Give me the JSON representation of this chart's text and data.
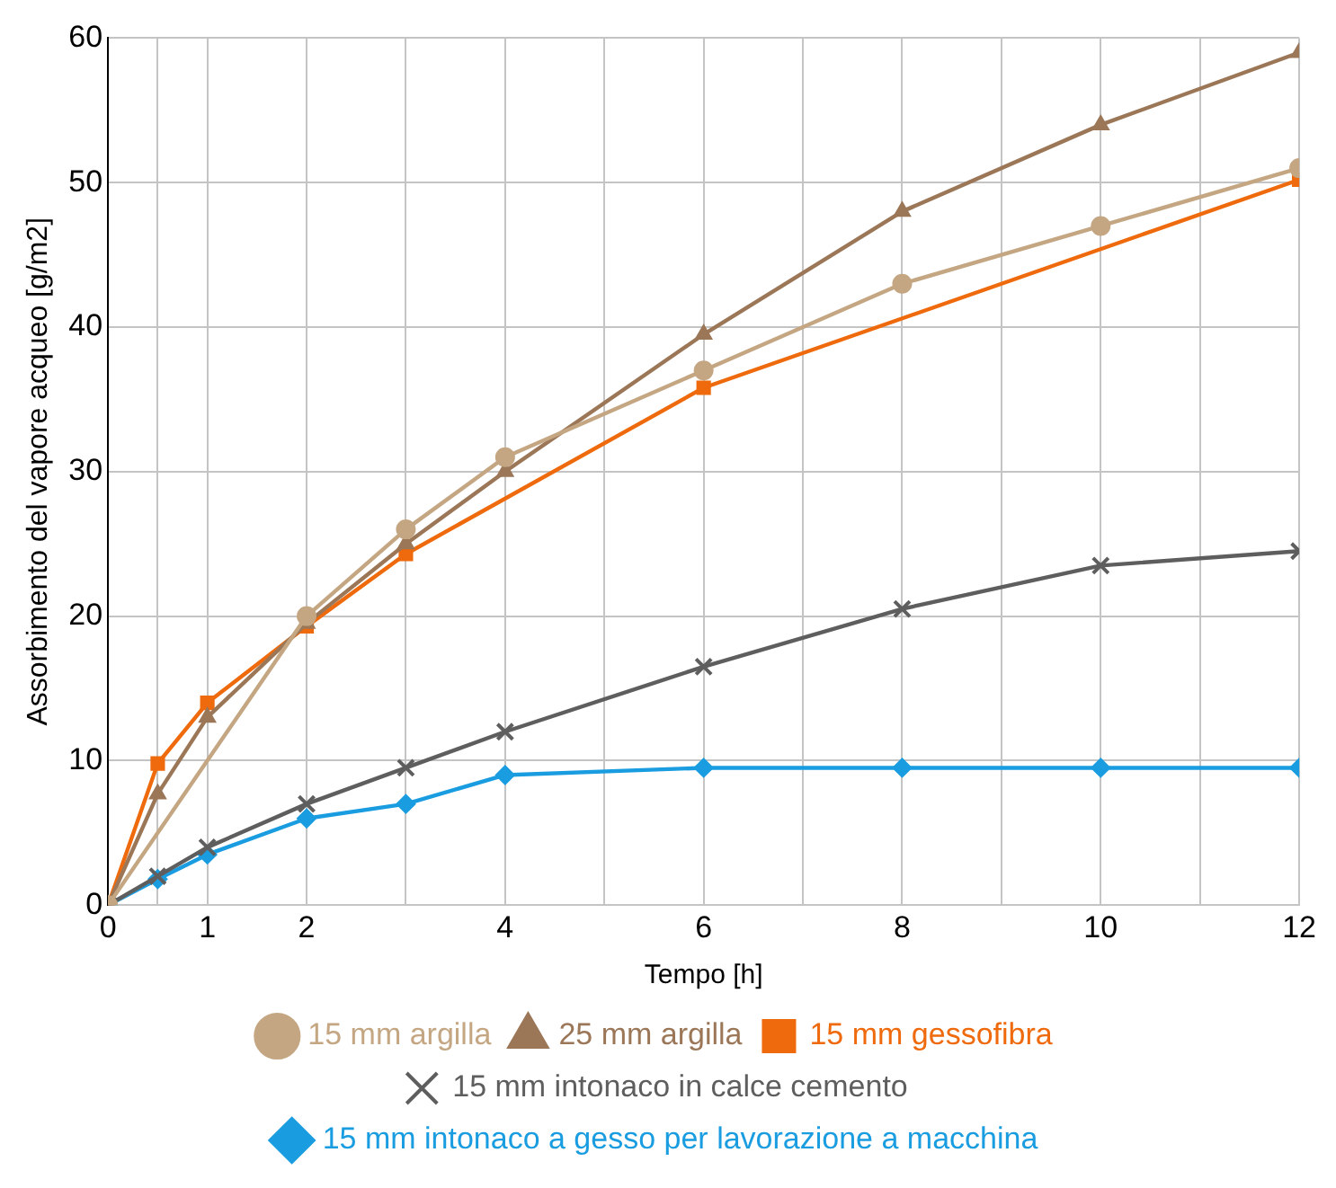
{
  "chart_data": {
    "type": "line",
    "xlabel": "Tempo [h]",
    "ylabel": "Assorbimento del vapore acqueo [g/m2]",
    "xlim": [
      0,
      12
    ],
    "xticks": [
      0,
      {
        "value": 0.5,
        "label": null
      },
      1,
      2,
      {
        "value": 3,
        "label": null
      },
      4,
      {
        "value": 5,
        "label": null
      },
      6,
      {
        "value": 7,
        "label": null
      },
      8,
      {
        "value": 9,
        "label": null
      },
      10,
      {
        "value": 11,
        "label": null
      },
      12
    ],
    "ylim": [
      0,
      60
    ],
    "yticks": [
      0,
      10,
      20,
      30,
      40,
      50,
      60
    ],
    "grid": true,
    "legend": "bottom",
    "line_style": "solid",
    "series": [
      {
        "name": "15 mm argilla",
        "color": "#c4a682",
        "marker": "circle",
        "x": [
          0,
          2,
          3,
          4,
          6,
          8,
          10,
          12
        ],
        "values": [
          0,
          20,
          26,
          31,
          37,
          43,
          47,
          51
        ]
      },
      {
        "name": "25 mm argilla",
        "color": "#9b7758",
        "marker": "triangle",
        "x": [
          0,
          0.5,
          1,
          2,
          3,
          4,
          6,
          8,
          10,
          12
        ],
        "values": [
          0,
          7.7,
          13,
          19.5,
          25,
          30,
          39.5,
          48,
          54,
          59
        ]
      },
      {
        "name": "15 mm gessofibra",
        "color": "#ee6a0c",
        "marker": "square",
        "x": [
          0,
          0.5,
          1,
          2,
          3,
          6,
          12
        ],
        "values": [
          0,
          9.8,
          14,
          19.3,
          24.3,
          35.8,
          50.2
        ]
      },
      {
        "name": "15 mm intonaco in calce cemento",
        "color": "#5e5e5e",
        "marker": "cross",
        "x": [
          0,
          0.5,
          1,
          2,
          3,
          4,
          6,
          8,
          10,
          12
        ],
        "values": [
          0,
          2,
          4,
          7,
          9.5,
          12,
          16.5,
          20.5,
          23.5,
          24.5
        ]
      },
      {
        "name": "15 mm intonaco a gesso per lavorazione a macchina",
        "color": "#1a9de0",
        "marker": "diamond",
        "x": [
          0,
          0.5,
          1,
          2,
          3,
          4,
          6,
          8,
          10,
          12
        ],
        "values": [
          0,
          1.8,
          3.5,
          6,
          7,
          9,
          9.5,
          9.5,
          9.5,
          9.5
        ]
      }
    ]
  }
}
